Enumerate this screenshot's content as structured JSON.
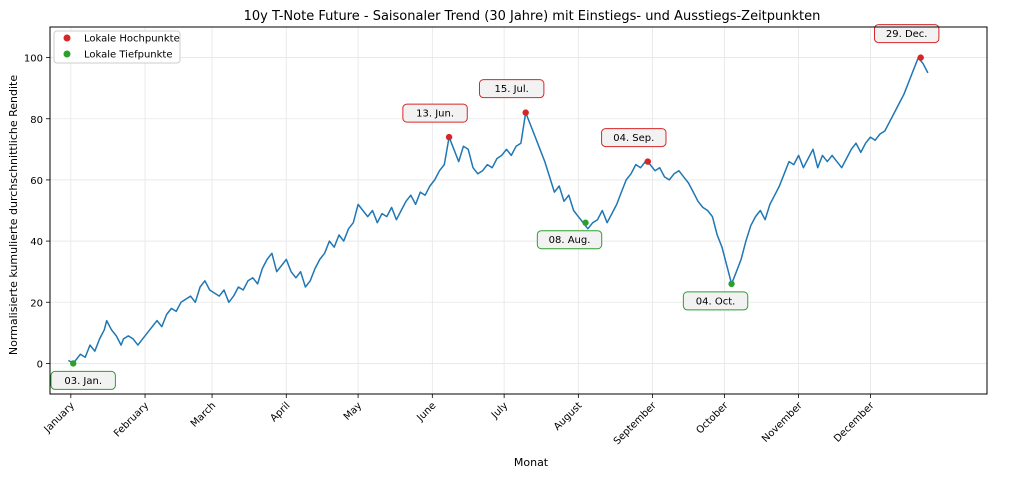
{
  "chart_data": {
    "type": "line",
    "title": "10y T-Note Future - Saisonaler Trend (30 Jahre) mit Einstiegs- und Ausstiegs-Zeitpunkten",
    "xlabel": "Monat",
    "ylabel": "Normalisierte kumulierte durchschnittliche Rendite",
    "ylim": [
      -10,
      110
    ],
    "yticks": [
      0,
      20,
      40,
      60,
      80,
      100
    ],
    "grid": true,
    "legend_position": "top-left",
    "x_unit": "day_of_year",
    "xlim": [
      -8.7,
      382.7
    ],
    "xticks": [
      {
        "day": 0,
        "label": "January"
      },
      {
        "day": 31,
        "label": "February"
      },
      {
        "day": 59,
        "label": "March"
      },
      {
        "day": 90,
        "label": "April"
      },
      {
        "day": 120,
        "label": "May"
      },
      {
        "day": 151,
        "label": "June"
      },
      {
        "day": 181,
        "label": "July"
      },
      {
        "day": 212,
        "label": "August"
      },
      {
        "day": 243,
        "label": "September"
      },
      {
        "day": 273,
        "label": "October"
      },
      {
        "day": 304,
        "label": "November"
      },
      {
        "day": 334,
        "label": "December"
      }
    ],
    "series": [
      {
        "color": "#1f77b4",
        "points": [
          [
            -1,
            1
          ],
          [
            1,
            0
          ],
          [
            2,
            1
          ],
          [
            4,
            3
          ],
          [
            6,
            2
          ],
          [
            8,
            6
          ],
          [
            10,
            4
          ],
          [
            12,
            8
          ],
          [
            14,
            11
          ],
          [
            15,
            14
          ],
          [
            17,
            11
          ],
          [
            19,
            9
          ],
          [
            21,
            6
          ],
          [
            22,
            8
          ],
          [
            24,
            9
          ],
          [
            26,
            8
          ],
          [
            28,
            6
          ],
          [
            30,
            8
          ],
          [
            32,
            10
          ],
          [
            34,
            12
          ],
          [
            36,
            14
          ],
          [
            38,
            12
          ],
          [
            40,
            16
          ],
          [
            42,
            18
          ],
          [
            44,
            17
          ],
          [
            46,
            20
          ],
          [
            48,
            21
          ],
          [
            50,
            22
          ],
          [
            52,
            20
          ],
          [
            54,
            25
          ],
          [
            56,
            27
          ],
          [
            58,
            24
          ],
          [
            60,
            23
          ],
          [
            62,
            22
          ],
          [
            64,
            24
          ],
          [
            66,
            20
          ],
          [
            68,
            22
          ],
          [
            70,
            25
          ],
          [
            72,
            24
          ],
          [
            74,
            27
          ],
          [
            76,
            28
          ],
          [
            78,
            26
          ],
          [
            80,
            31
          ],
          [
            82,
            34
          ],
          [
            84,
            36
          ],
          [
            86,
            30
          ],
          [
            88,
            32
          ],
          [
            90,
            34
          ],
          [
            92,
            30
          ],
          [
            94,
            28
          ],
          [
            96,
            30
          ],
          [
            98,
            25
          ],
          [
            100,
            27
          ],
          [
            102,
            31
          ],
          [
            104,
            34
          ],
          [
            106,
            36
          ],
          [
            108,
            40
          ],
          [
            110,
            38
          ],
          [
            112,
            42
          ],
          [
            114,
            40
          ],
          [
            116,
            44
          ],
          [
            118,
            46
          ],
          [
            120,
            52
          ],
          [
            122,
            50
          ],
          [
            124,
            48
          ],
          [
            126,
            50
          ],
          [
            128,
            46
          ],
          [
            130,
            49
          ],
          [
            132,
            48
          ],
          [
            134,
            51
          ],
          [
            136,
            47
          ],
          [
            138,
            50
          ],
          [
            140,
            53
          ],
          [
            142,
            55
          ],
          [
            144,
            52
          ],
          [
            146,
            56
          ],
          [
            148,
            55
          ],
          [
            150,
            58
          ],
          [
            152,
            60
          ],
          [
            154,
            63
          ],
          [
            156,
            65
          ],
          [
            158,
            74
          ],
          [
            160,
            70
          ],
          [
            162,
            66
          ],
          [
            164,
            71
          ],
          [
            166,
            70
          ],
          [
            168,
            64
          ],
          [
            170,
            62
          ],
          [
            172,
            63
          ],
          [
            174,
            65
          ],
          [
            176,
            64
          ],
          [
            178,
            67
          ],
          [
            180,
            68
          ],
          [
            182,
            70
          ],
          [
            184,
            68
          ],
          [
            186,
            71
          ],
          [
            188,
            72
          ],
          [
            190,
            82
          ],
          [
            192,
            78
          ],
          [
            194,
            74
          ],
          [
            196,
            70
          ],
          [
            198,
            66
          ],
          [
            200,
            61
          ],
          [
            202,
            56
          ],
          [
            204,
            58
          ],
          [
            206,
            53
          ],
          [
            208,
            55
          ],
          [
            210,
            50
          ],
          [
            212,
            48
          ],
          [
            214,
            46
          ],
          [
            216,
            44
          ],
          [
            218,
            46
          ],
          [
            220,
            47
          ],
          [
            222,
            50
          ],
          [
            224,
            46
          ],
          [
            226,
            49
          ],
          [
            228,
            52
          ],
          [
            230,
            56
          ],
          [
            232,
            60
          ],
          [
            234,
            62
          ],
          [
            236,
            65
          ],
          [
            238,
            64
          ],
          [
            240,
            66
          ],
          [
            242,
            65
          ],
          [
            244,
            63
          ],
          [
            246,
            64
          ],
          [
            248,
            61
          ],
          [
            250,
            60
          ],
          [
            252,
            62
          ],
          [
            254,
            63
          ],
          [
            256,
            61
          ],
          [
            258,
            59
          ],
          [
            260,
            56
          ],
          [
            262,
            53
          ],
          [
            264,
            51
          ],
          [
            266,
            50
          ],
          [
            268,
            48
          ],
          [
            270,
            42
          ],
          [
            272,
            38
          ],
          [
            274,
            32
          ],
          [
            276,
            26
          ],
          [
            278,
            30
          ],
          [
            280,
            34
          ],
          [
            282,
            40
          ],
          [
            284,
            45
          ],
          [
            286,
            48
          ],
          [
            288,
            50
          ],
          [
            290,
            47
          ],
          [
            292,
            52
          ],
          [
            294,
            55
          ],
          [
            296,
            58
          ],
          [
            298,
            62
          ],
          [
            300,
            66
          ],
          [
            302,
            65
          ],
          [
            304,
            68
          ],
          [
            306,
            64
          ],
          [
            308,
            67
          ],
          [
            310,
            70
          ],
          [
            312,
            64
          ],
          [
            314,
            68
          ],
          [
            316,
            66
          ],
          [
            318,
            68
          ],
          [
            320,
            66
          ],
          [
            322,
            64
          ],
          [
            324,
            67
          ],
          [
            326,
            70
          ],
          [
            328,
            72
          ],
          [
            330,
            69
          ],
          [
            332,
            72
          ],
          [
            334,
            74
          ],
          [
            336,
            73
          ],
          [
            338,
            75
          ],
          [
            340,
            76
          ],
          [
            342,
            79
          ],
          [
            344,
            82
          ],
          [
            346,
            85
          ],
          [
            348,
            88
          ],
          [
            350,
            92
          ],
          [
            352,
            96
          ],
          [
            354,
            100
          ],
          [
            356,
            98
          ],
          [
            358,
            95
          ]
        ]
      }
    ],
    "legend": [
      {
        "label": "Lokale Hochpunkte",
        "color": "#d62728"
      },
      {
        "label": "Lokale Tiefpunkte",
        "color": "#2ca02c"
      }
    ],
    "peaks": [
      {
        "day": 158,
        "value": 74,
        "label": "13. Jun."
      },
      {
        "day": 190,
        "value": 82,
        "label": "15. Jul."
      },
      {
        "day": 241,
        "value": 66,
        "label": "04. Sep."
      },
      {
        "day": 355,
        "value": 100,
        "label": "29. Dec."
      }
    ],
    "troughs": [
      {
        "day": 1,
        "value": 0,
        "label": "03. Jan."
      },
      {
        "day": 215,
        "value": 46,
        "label": "08. Aug."
      },
      {
        "day": 276,
        "value": 26,
        "label": "04. Oct."
      }
    ]
  }
}
